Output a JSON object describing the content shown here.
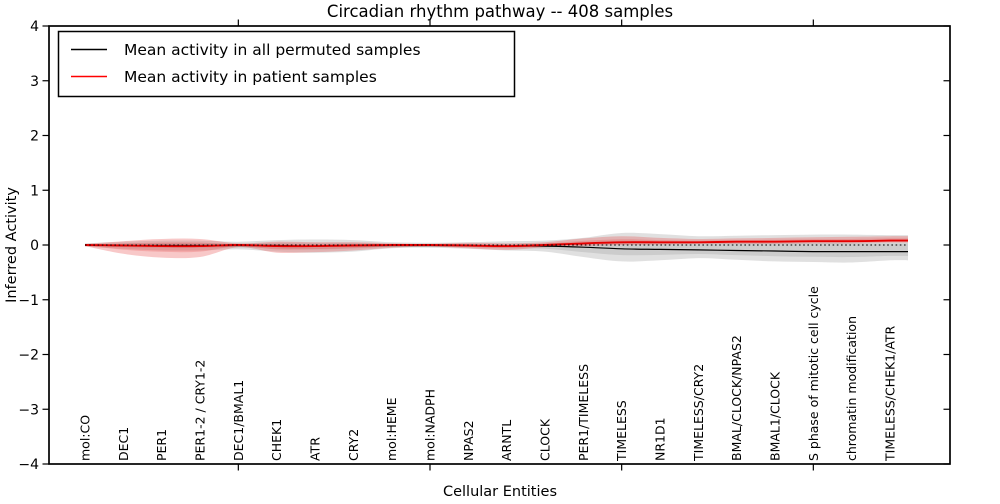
{
  "chart_data": {
    "type": "line",
    "title": "Circadian rhythm pathway -- 408 samples",
    "xlabel": "Cellular Entities",
    "ylabel": "Inferred Activity",
    "ylim": [
      -4,
      4
    ],
    "yticks": [
      4,
      3,
      2,
      1,
      0,
      -1,
      -2,
      -3,
      -4
    ],
    "xtick_mark_indices": [
      4,
      9,
      14,
      19
    ],
    "grid": false,
    "legend_position": "upper left",
    "legend": [
      {
        "label": "Mean activity in all permuted samples",
        "color": "#000000"
      },
      {
        "label": "Mean activity in patient samples",
        "color": "#ff0000"
      }
    ],
    "entities": [
      "mol:CO",
      "DEC1",
      "PER1",
      "PER1-2 / CRY1-2",
      "DEC1/BMAL1",
      "CHEK1",
      "ATR",
      "CRY2",
      "mol:HEME",
      "mol:NADPH",
      "NPAS2",
      "ARNTL",
      "CLOCK",
      "PER1/TIMELESS",
      "TIMELESS",
      "NR1D1",
      "TIMELESS/CRY2",
      "BMAL/CLOCK/NPAS2",
      "BMAL1/CLOCK",
      "S phase of mitotic cell cycle",
      "chromatin modification",
      "TIMELESS/CHEK1/ATR"
    ],
    "series": [
      {
        "name": "Mean activity in all permuted samples",
        "color": "#000000",
        "style": "solid",
        "values": [
          0,
          -0.01,
          -0.01,
          -0.01,
          -0.01,
          -0.01,
          -0.02,
          -0.01,
          -0.01,
          -0.01,
          -0.01,
          -0.02,
          -0.02,
          -0.04,
          -0.07,
          -0.08,
          -0.09,
          -0.1,
          -0.11,
          -0.12,
          -0.12,
          -0.12
        ]
      },
      {
        "name": "Mean activity in patient samples",
        "color": "#e60000",
        "style": "solid",
        "values": [
          0,
          -0.01,
          -0.02,
          -0.02,
          0,
          -0.02,
          -0.02,
          -0.01,
          0,
          0,
          -0.01,
          -0.02,
          0,
          0.03,
          0.05,
          0.05,
          0.05,
          0.06,
          0.06,
          0.07,
          0.07,
          0.08
        ]
      },
      {
        "name": "zero reference",
        "color": "#000000",
        "style": "dotted",
        "constant": 0
      }
    ],
    "bands": [
      {
        "name": "permuted samples envelope",
        "color": "#909090",
        "opacity": 0.28,
        "hi": [
          0.03,
          0.06,
          0.08,
          0.08,
          0.06,
          0.09,
          0.1,
          0.09,
          0.05,
          0.04,
          0.05,
          0.07,
          0.08,
          0.13,
          0.22,
          0.2,
          0.16,
          0.17,
          0.18,
          0.19,
          0.19,
          0.18
        ],
        "lo": [
          -0.03,
          -0.07,
          -0.1,
          -0.1,
          -0.08,
          -0.12,
          -0.14,
          -0.12,
          -0.06,
          -0.05,
          -0.07,
          -0.1,
          -0.12,
          -0.22,
          -0.3,
          -0.28,
          -0.24,
          -0.27,
          -0.3,
          -0.31,
          -0.32,
          -0.28
        ],
        "mean_ref": 0
      },
      {
        "name": "patient samples envelope",
        "color": "#e84a4a",
        "opacity": 0.3,
        "hi": [
          0.02,
          0.07,
          0.11,
          0.11,
          0.03,
          0.06,
          0.05,
          0.05,
          0.03,
          0.02,
          0.04,
          0.03,
          0.05,
          0.12,
          0.16,
          0.13,
          0.11,
          0.12,
          0.13,
          0.14,
          0.15,
          0.16
        ],
        "lo": [
          -0.02,
          -0.16,
          -0.23,
          -0.22,
          -0.04,
          -0.14,
          -0.13,
          -0.1,
          -0.05,
          -0.03,
          -0.06,
          -0.09,
          -0.04,
          -0.02,
          0.0,
          0.01,
          0.02,
          0.02,
          0.02,
          0.03,
          0.03,
          0.04
        ],
        "mean_ref": 1
      }
    ]
  }
}
